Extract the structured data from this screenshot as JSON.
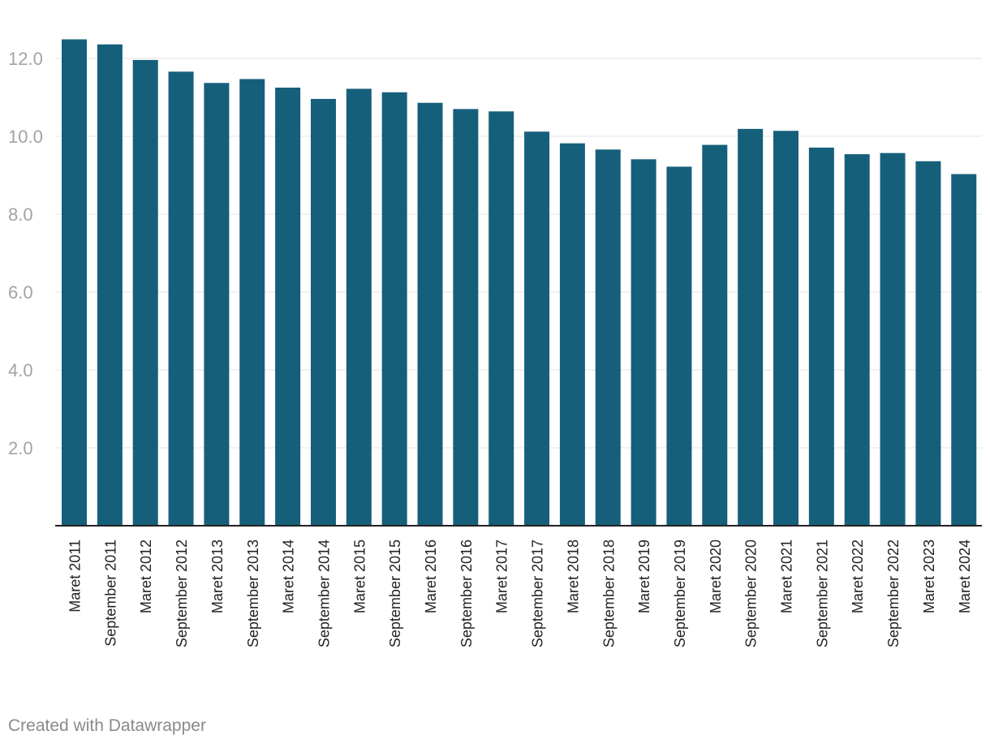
{
  "chart_data": {
    "type": "bar",
    "title": "",
    "xlabel": "",
    "ylabel": "",
    "ylim": [
      0,
      12.5
    ],
    "yticks": [
      2.0,
      4.0,
      6.0,
      8.0,
      10.0,
      12.0
    ],
    "ytick_labels": [
      "2.0",
      "4.0",
      "6.0",
      "8.0",
      "10.0",
      "12.0"
    ],
    "grid": true,
    "bar_color": "#165f7a",
    "categories": [
      "Maret 2011",
      "September 2011",
      "Maret 2012",
      "September 2012",
      "Maret 2013",
      "September 2013",
      "Maret 2014",
      "September 2014",
      "Maret 2015",
      "September 2015",
      "Maret 2016",
      "September 2016",
      "Maret 2017",
      "September 2017",
      "Maret 2018",
      "September 2018",
      "Maret 2019",
      "September 2019",
      "Maret 2020",
      "September 2020",
      "Maret 2021",
      "September 2021",
      "Maret 2022",
      "September 2022",
      "Maret 2023",
      "Maret 2024"
    ],
    "values": [
      12.49,
      12.36,
      11.96,
      11.66,
      11.37,
      11.47,
      11.25,
      10.96,
      11.22,
      11.13,
      10.86,
      10.7,
      10.64,
      10.12,
      9.82,
      9.66,
      9.41,
      9.22,
      9.78,
      10.19,
      10.14,
      9.71,
      9.54,
      9.57,
      9.36,
      9.03
    ]
  },
  "footer": {
    "credit": "Created with Datawrapper"
  }
}
